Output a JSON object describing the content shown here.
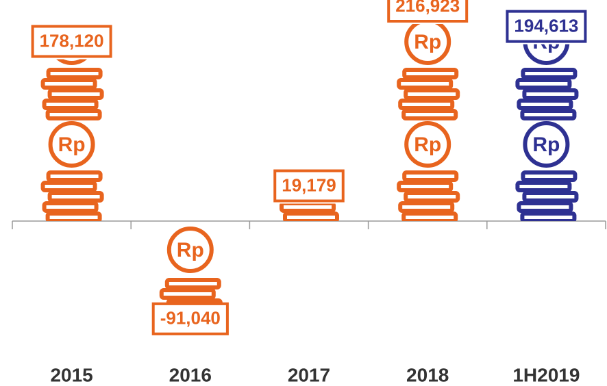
{
  "chart_data": {
    "type": "pictograph-bar",
    "categories": [
      "2015",
      "2016",
      "2017",
      "2018",
      "1H2019"
    ],
    "values": [
      178120,
      -91040,
      19179,
      216923,
      194613
    ],
    "value_labels": [
      "178,120",
      "-91,040",
      "19,179",
      "216,923",
      "194,613"
    ],
    "colors": [
      "#e8641e",
      "#e8641e",
      "#e8641e",
      "#e8641e",
      "#2e3192"
    ],
    "coin_label": "Rp"
  }
}
